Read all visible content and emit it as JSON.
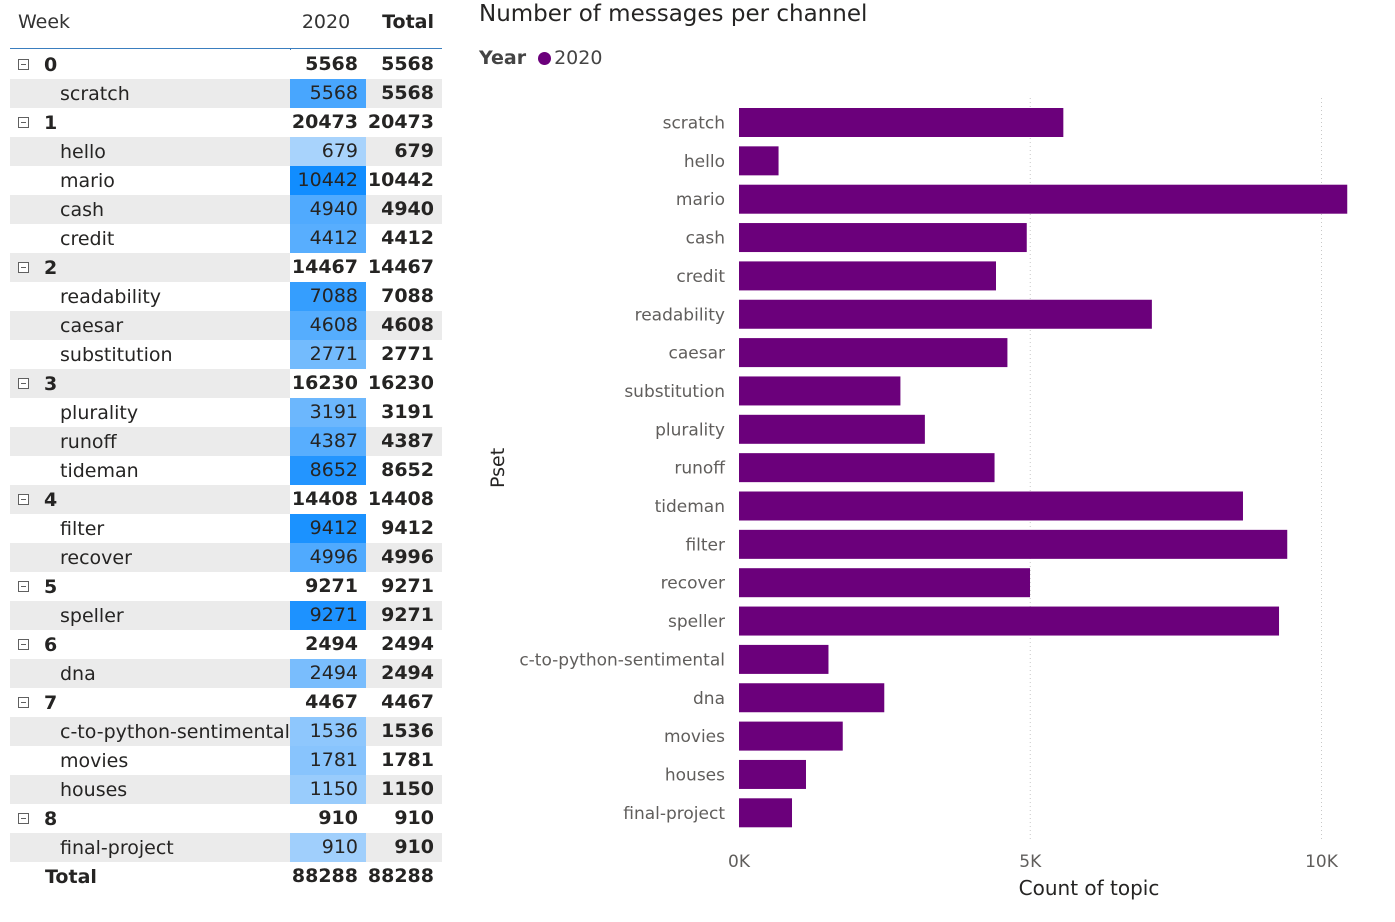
{
  "matrix": {
    "header": {
      "week": "Week",
      "year": "2020",
      "total": "Total"
    },
    "rows": [
      {
        "type": "group",
        "label": "0",
        "v2020": "5568",
        "total": "5568"
      },
      {
        "type": "child",
        "label": "scratch",
        "v2020": "5568",
        "total": "5568",
        "value": 5568
      },
      {
        "type": "group",
        "label": "1",
        "v2020": "20473",
        "total": "20473"
      },
      {
        "type": "child",
        "label": "hello",
        "v2020": "679",
        "total": "679",
        "value": 679
      },
      {
        "type": "child",
        "label": "mario",
        "v2020": "10442",
        "total": "10442",
        "value": 10442
      },
      {
        "type": "child",
        "label": "cash",
        "v2020": "4940",
        "total": "4940",
        "value": 4940
      },
      {
        "type": "child",
        "label": "credit",
        "v2020": "4412",
        "total": "4412",
        "value": 4412
      },
      {
        "type": "group",
        "label": "2",
        "v2020": "14467",
        "total": "14467"
      },
      {
        "type": "child",
        "label": "readability",
        "v2020": "7088",
        "total": "7088",
        "value": 7088
      },
      {
        "type": "child",
        "label": "caesar",
        "v2020": "4608",
        "total": "4608",
        "value": 4608
      },
      {
        "type": "child",
        "label": "substitution",
        "v2020": "2771",
        "total": "2771",
        "value": 2771
      },
      {
        "type": "group",
        "label": "3",
        "v2020": "16230",
        "total": "16230"
      },
      {
        "type": "child",
        "label": "plurality",
        "v2020": "3191",
        "total": "3191",
        "value": 3191
      },
      {
        "type": "child",
        "label": "runoff",
        "v2020": "4387",
        "total": "4387",
        "value": 4387
      },
      {
        "type": "child",
        "label": "tideman",
        "v2020": "8652",
        "total": "8652",
        "value": 8652
      },
      {
        "type": "group",
        "label": "4",
        "v2020": "14408",
        "total": "14408"
      },
      {
        "type": "child",
        "label": "filter",
        "v2020": "9412",
        "total": "9412",
        "value": 9412
      },
      {
        "type": "child",
        "label": "recover",
        "v2020": "4996",
        "total": "4996",
        "value": 4996
      },
      {
        "type": "group",
        "label": "5",
        "v2020": "9271",
        "total": "9271"
      },
      {
        "type": "child",
        "label": "speller",
        "v2020": "9271",
        "total": "9271",
        "value": 9271
      },
      {
        "type": "group",
        "label": "6",
        "v2020": "2494",
        "total": "2494"
      },
      {
        "type": "child",
        "label": "dna",
        "v2020": "2494",
        "total": "2494",
        "value": 2494
      },
      {
        "type": "group",
        "label": "7",
        "v2020": "4467",
        "total": "4467"
      },
      {
        "type": "child",
        "label": "c-to-python-sentimental",
        "v2020": "1536",
        "total": "1536",
        "value": 1536
      },
      {
        "type": "child",
        "label": "movies",
        "v2020": "1781",
        "total": "1781",
        "value": 1781
      },
      {
        "type": "child",
        "label": "houses",
        "v2020": "1150",
        "total": "1150",
        "value": 1150
      },
      {
        "type": "group",
        "label": "8",
        "v2020": "910",
        "total": "910"
      },
      {
        "type": "child",
        "label": "final-project",
        "v2020": "910",
        "total": "910",
        "value": 910
      },
      {
        "type": "grand",
        "label": "Total",
        "v2020": "88288",
        "total": "88288"
      }
    ],
    "heat_colors": {
      "low": "#dcebfb",
      "high": "#118dff"
    }
  },
  "chart_data": {
    "type": "bar",
    "orientation": "horizontal",
    "title": "Number of messages per channel",
    "legend": {
      "title": "Year",
      "entries": [
        "2020"
      ],
      "position": "top-left"
    },
    "xlabel": "Count of topic",
    "ylabel": "Pset",
    "xlim": [
      0,
      10500
    ],
    "xticks": [
      0,
      5000,
      10000
    ],
    "xtick_labels": [
      "0K",
      "5K",
      "10K"
    ],
    "grid": "vertical dotted",
    "color": "#6b007b",
    "categories": [
      "scratch",
      "hello",
      "mario",
      "cash",
      "credit",
      "readability",
      "caesar",
      "substitution",
      "plurality",
      "runoff",
      "tideman",
      "filter",
      "recover",
      "speller",
      "c-to-python-sentimental",
      "dna",
      "movies",
      "houses",
      "final-project"
    ],
    "series": [
      {
        "name": "2020",
        "values": [
          5568,
          679,
          10442,
          4940,
          4412,
          7088,
          4608,
          2771,
          3191,
          4387,
          8652,
          9412,
          4996,
          9271,
          1536,
          2494,
          1781,
          1150,
          910
        ]
      }
    ]
  }
}
